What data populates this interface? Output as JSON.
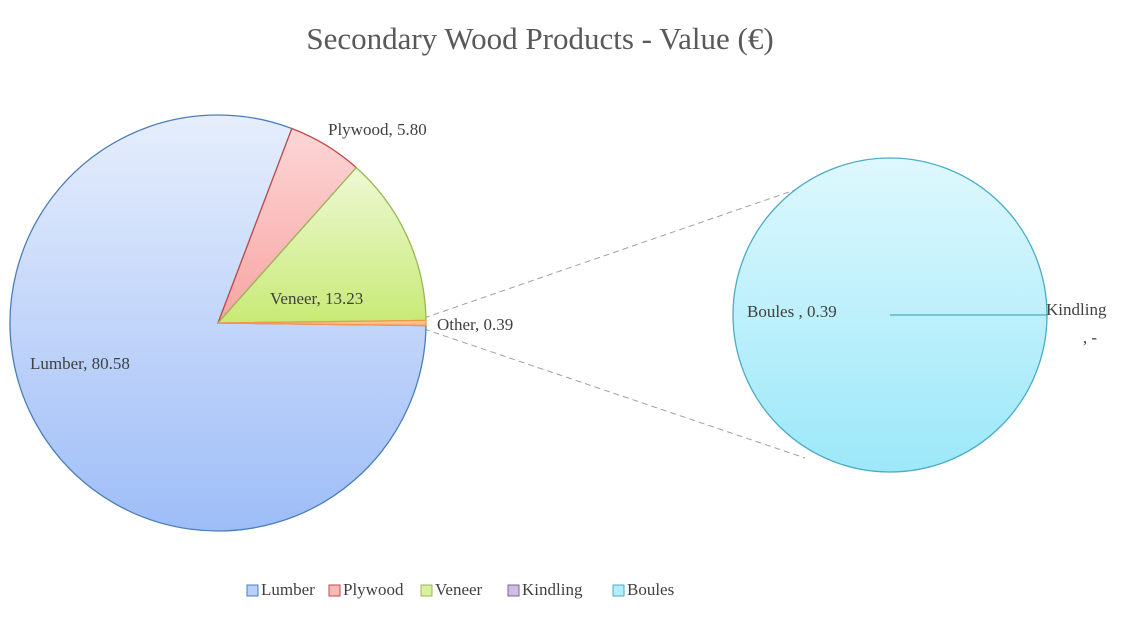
{
  "chart_data": {
    "type": "pie",
    "title": "Secondary Wood Products - Value (€)",
    "label_separator": ",  ",
    "categories": [
      "Lumber",
      "Plywood",
      "Veneer",
      "Other"
    ],
    "values": [
      80.58,
      5.8,
      13.23,
      0.39
    ],
    "value_labels": [
      "80.58",
      "5.80",
      "13.23",
      "0.39"
    ],
    "colors": [
      "#b8d0fa",
      "#f9b9b8",
      "#d8f0a0",
      "#fac090"
    ],
    "secondary": {
      "categories": [
        "Boules ",
        "Kindling"
      ],
      "values": [
        0.39,
        0
      ],
      "value_labels": [
        "0.39",
        "-"
      ],
      "colors": [
        "#b4eefa",
        "#cdbde4"
      ]
    }
  }
}
